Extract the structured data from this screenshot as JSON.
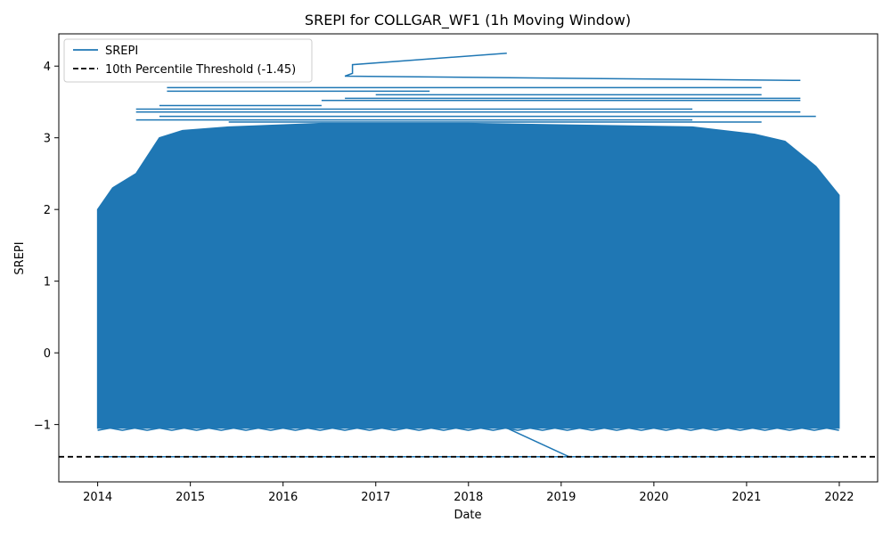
{
  "chart_data": {
    "type": "line",
    "title": "SREPI for COLLGAR_WF1 (1h Moving Window)",
    "xlabel": "Date",
    "ylabel": "SREPI",
    "x_ticks": [
      "2014",
      "2015",
      "2016",
      "2017",
      "2018",
      "2019",
      "2020",
      "2021",
      "2022"
    ],
    "y_ticks": [
      "−1",
      "0",
      "1",
      "2",
      "3",
      "4"
    ],
    "xlim": [
      "2013-08-01",
      "2022-06-01"
    ],
    "ylim": [
      -1.8,
      4.45
    ],
    "grid": false,
    "legend_position": "upper-left",
    "colors": {
      "series": "#1f77b4",
      "threshold": "#000000"
    },
    "series": [
      {
        "name": "SREPI",
        "style": "solid",
        "baseline_segment": {
          "x": [
            "2014-01-01",
            "2021-12-31"
          ],
          "y": [
            -1.45,
            -1.45
          ]
        },
        "dense_band": {
          "y_range": [
            -1.05,
            3.2
          ],
          "x_range_at_bottom": [
            "2014-01-01",
            "2021-12-31"
          ],
          "upper_envelope": [
            {
              "x": "2014-01-01",
              "y": 2.0
            },
            {
              "x": "2014-03-01",
              "y": 2.3
            },
            {
              "x": "2014-06-01",
              "y": 2.5
            },
            {
              "x": "2014-09-01",
              "y": 3.0
            },
            {
              "x": "2014-12-01",
              "y": 3.1
            },
            {
              "x": "2015-06-01",
              "y": 3.15
            },
            {
              "x": "2016-06-01",
              "y": 3.2
            },
            {
              "x": "2018-01-01",
              "y": 3.2
            },
            {
              "x": "2020-06-01",
              "y": 3.15
            },
            {
              "x": "2021-02-01",
              "y": 3.05
            },
            {
              "x": "2021-06-01",
              "y": 2.95
            },
            {
              "x": "2021-10-01",
              "y": 2.6
            },
            {
              "x": "2021-12-31",
              "y": 2.2
            }
          ]
        },
        "upper_excursions": [
          {
            "x": [
              "2014-10-01",
              "2021-03-01"
            ],
            "y": 3.7
          },
          {
            "x": [
              "2014-10-01",
              "2017-08-01"
            ],
            "y": 3.65
          },
          {
            "x": [
              "2017-01-01",
              "2021-03-01"
            ],
            "y": 3.6
          },
          {
            "x": [
              "2016-09-01",
              "2021-08-01"
            ],
            "y": 3.55
          },
          {
            "x": [
              "2016-06-01",
              "2021-08-01"
            ],
            "y": 3.52
          },
          {
            "x": [
              "2014-09-01",
              "2016-06-01"
            ],
            "y": 3.45
          },
          {
            "x": [
              "2014-06-01",
              "2020-06-01"
            ],
            "y": 3.4
          },
          {
            "x": [
              "2014-06-01",
              "2021-08-01"
            ],
            "y": 3.36
          },
          {
            "x": [
              "2014-09-01",
              "2021-10-01"
            ],
            "y": 3.3
          },
          {
            "x": [
              "2014-06-01",
              "2020-06-01"
            ],
            "y": 3.25
          },
          {
            "x": [
              "2015-06-01",
              "2021-03-01"
            ],
            "y": 3.22
          }
        ],
        "peak_path": [
          {
            "x": "2021-08-01",
            "y": 3.8
          },
          {
            "x": "2016-09-01",
            "y": 3.86
          },
          {
            "x": "2016-10-01",
            "y": 3.9
          },
          {
            "x": "2016-10-01",
            "y": 4.02
          },
          {
            "x": "2018-06-01",
            "y": 4.18
          }
        ],
        "descent_segment": [
          {
            "x": "2018-06-01",
            "y": -1.05
          },
          {
            "x": "2019-02-01",
            "y": -1.45
          }
        ]
      },
      {
        "name": "10th Percentile Threshold (-1.45)",
        "style": "dashed",
        "y": -1.45
      }
    ]
  }
}
